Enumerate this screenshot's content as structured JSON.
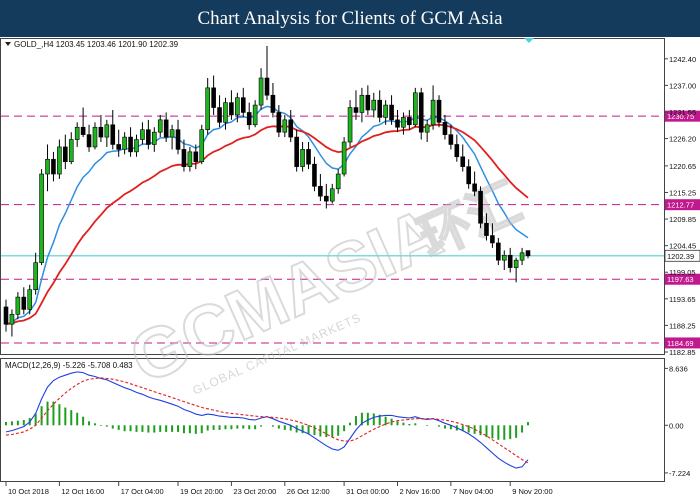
{
  "banner": {
    "title": "Chart Analysis for Clients of GCM Asia"
  },
  "watermark": {
    "main": "GCMASIA",
    "chinese": "环汇",
    "sub": "GLOBAL CAPITAL MARKETS"
  },
  "chart_data": [
    {
      "type": "candlestick",
      "header": "GOLD_,H4  1203.45 1203.46 1201.90 1202.39",
      "symbol": "GOLD_,H4",
      "ohlc_readout": "1203.45 1203.46 1201.90 1202.39",
      "ylim": [
        1182.85,
        1245.0
      ],
      "yticks": [
        "1242.40",
        "1237.00",
        "1231.55",
        "1226.20",
        "1220.65",
        "1215.25",
        "1209.85",
        "1204.45",
        "1199.05",
        "1193.65",
        "1188.25",
        "1182.85"
      ],
      "xticks": [
        "10 Oct 2018",
        "12 Oct 16:00",
        "17 Oct 04:00",
        "19 Oct 20:00",
        "23 Oct 20:00",
        "26 Oct 12:00",
        "31 Oct 00:00",
        "2 Nov 16:00",
        "7 Nov 04:00",
        "9 Nov 20:00"
      ],
      "current_price": {
        "value": 1202.39,
        "label": "1202.39",
        "color": "#4fd2d2"
      },
      "levels": [
        {
          "value": 1230.75,
          "label": "1230.75",
          "color": "#c2188f"
        },
        {
          "value": 1212.77,
          "label": "1212.77",
          "color": "#c2188f"
        },
        {
          "value": 1197.63,
          "label": "1197.63",
          "color": "#c2188f"
        },
        {
          "value": 1184.69,
          "label": "1184.69",
          "color": "#c2188f"
        }
      ],
      "moving_averages": [
        {
          "color": "#2f8fe0",
          "period": "fast"
        },
        {
          "color": "#e02020",
          "period": "slow"
        }
      ],
      "candles": [
        [
          1192.0,
          1193.5,
          1187.0,
          1188.5
        ],
        [
          1188.5,
          1191.5,
          1186.0,
          1190.5
        ],
        [
          1190.5,
          1195.0,
          1189.5,
          1194.0
        ],
        [
          1194.0,
          1196.0,
          1190.5,
          1191.5
        ],
        [
          1191.5,
          1196.5,
          1190.5,
          1195.5
        ],
        [
          1195.5,
          1203.0,
          1194.5,
          1201.0
        ],
        [
          1201.0,
          1220.0,
          1200.5,
          1219.0
        ],
        [
          1219.0,
          1225.0,
          1215.5,
          1222.0
        ],
        [
          1222.0,
          1223.5,
          1217.5,
          1219.0
        ],
        [
          1219.0,
          1226.0,
          1218.0,
          1224.5
        ],
        [
          1224.5,
          1227.0,
          1220.0,
          1221.5
        ],
        [
          1221.5,
          1227.5,
          1221.0,
          1226.0
        ],
        [
          1226.0,
          1229.5,
          1224.5,
          1228.5
        ],
        [
          1228.5,
          1232.5,
          1226.5,
          1227.0
        ],
        [
          1227.0,
          1229.0,
          1223.5,
          1224.5
        ],
        [
          1224.5,
          1229.5,
          1224.0,
          1228.5
        ],
        [
          1228.5,
          1231.0,
          1225.5,
          1226.5
        ],
        [
          1226.5,
          1230.0,
          1224.5,
          1229.0
        ],
        [
          1229.0,
          1232.0,
          1224.0,
          1225.0
        ],
        [
          1225.0,
          1228.0,
          1222.5,
          1224.0
        ],
        [
          1224.0,
          1227.5,
          1223.0,
          1226.5
        ],
        [
          1226.5,
          1228.5,
          1222.5,
          1223.5
        ],
        [
          1223.5,
          1227.0,
          1222.5,
          1226.0
        ],
        [
          1226.0,
          1229.5,
          1225.0,
          1228.0
        ],
        [
          1228.0,
          1230.0,
          1224.0,
          1225.0
        ],
        [
          1225.0,
          1228.5,
          1223.5,
          1227.5
        ],
        [
          1227.5,
          1231.0,
          1226.5,
          1230.0
        ],
        [
          1230.0,
          1231.5,
          1225.5,
          1226.5
        ],
        [
          1226.5,
          1229.0,
          1224.0,
          1228.0
        ],
        [
          1228.0,
          1230.0,
          1223.0,
          1224.0
        ],
        [
          1224.0,
          1226.0,
          1219.5,
          1220.5
        ],
        [
          1220.5,
          1224.5,
          1219.5,
          1223.5
        ],
        [
          1223.5,
          1225.0,
          1220.0,
          1221.5
        ],
        [
          1221.5,
          1229.0,
          1221.0,
          1228.0
        ],
        [
          1228.0,
          1238.5,
          1227.0,
          1236.5
        ],
        [
          1236.5,
          1239.0,
          1231.0,
          1232.5
        ],
        [
          1232.5,
          1235.0,
          1228.5,
          1229.5
        ],
        [
          1229.5,
          1234.5,
          1228.0,
          1233.5
        ],
        [
          1233.5,
          1236.0,
          1230.0,
          1231.0
        ],
        [
          1231.0,
          1235.5,
          1229.5,
          1234.5
        ],
        [
          1234.5,
          1236.5,
          1230.5,
          1231.5
        ],
        [
          1231.5,
          1233.5,
          1228.0,
          1229.0
        ],
        [
          1229.0,
          1234.0,
          1228.5,
          1233.0
        ],
        [
          1233.0,
          1240.5,
          1232.0,
          1238.5
        ],
        [
          1238.5,
          1245.0,
          1234.0,
          1235.0
        ],
        [
          1235.0,
          1237.5,
          1230.5,
          1231.5
        ],
        [
          1231.5,
          1233.0,
          1226.5,
          1227.5
        ],
        [
          1227.5,
          1231.0,
          1226.5,
          1230.0
        ],
        [
          1230.0,
          1232.0,
          1225.5,
          1226.5
        ],
        [
          1226.5,
          1228.0,
          1219.5,
          1220.5
        ],
        [
          1220.5,
          1225.5,
          1219.5,
          1224.0
        ],
        [
          1224.0,
          1225.5,
          1220.0,
          1221.0
        ],
        [
          1221.0,
          1222.5,
          1215.5,
          1216.5
        ],
        [
          1216.5,
          1219.0,
          1213.5,
          1214.5
        ],
        [
          1214.5,
          1217.0,
          1212.0,
          1213.5
        ],
        [
          1213.5,
          1217.0,
          1213.0,
          1216.0
        ],
        [
          1216.0,
          1220.0,
          1215.0,
          1219.0
        ],
        [
          1219.0,
          1226.5,
          1218.5,
          1225.5
        ],
        [
          1225.5,
          1234.0,
          1224.5,
          1232.5
        ],
        [
          1232.5,
          1236.0,
          1230.0,
          1231.5
        ],
        [
          1231.5,
          1236.5,
          1229.5,
          1235.0
        ],
        [
          1235.0,
          1237.0,
          1231.0,
          1232.0
        ],
        [
          1232.0,
          1235.5,
          1230.5,
          1234.0
        ],
        [
          1234.0,
          1236.0,
          1229.5,
          1230.5
        ],
        [
          1230.5,
          1234.0,
          1229.0,
          1233.0
        ],
        [
          1233.0,
          1235.0,
          1229.0,
          1230.0
        ],
        [
          1230.0,
          1232.0,
          1227.5,
          1228.5
        ],
        [
          1228.5,
          1231.5,
          1227.0,
          1230.5
        ],
        [
          1230.5,
          1232.0,
          1228.0,
          1229.0
        ],
        [
          1229.0,
          1236.5,
          1228.5,
          1235.5
        ],
        [
          1235.5,
          1236.5,
          1226.0,
          1227.5
        ],
        [
          1227.5,
          1230.0,
          1225.5,
          1229.0
        ],
        [
          1229.0,
          1237.0,
          1228.0,
          1234.0
        ],
        [
          1234.0,
          1235.0,
          1228.5,
          1229.5
        ],
        [
          1229.5,
          1231.0,
          1226.0,
          1227.0
        ],
        [
          1227.0,
          1229.0,
          1224.0,
          1225.0
        ],
        [
          1225.0,
          1227.0,
          1221.5,
          1222.5
        ],
        [
          1222.5,
          1225.0,
          1219.5,
          1220.5
        ],
        [
          1220.5,
          1222.0,
          1216.0,
          1217.0
        ],
        [
          1217.0,
          1219.5,
          1214.5,
          1215.5
        ],
        [
          1215.5,
          1216.5,
          1208.0,
          1209.0
        ],
        [
          1209.0,
          1211.0,
          1205.5,
          1206.5
        ],
        [
          1206.5,
          1209.0,
          1204.0,
          1205.0
        ],
        [
          1205.0,
          1206.0,
          1200.5,
          1201.5
        ],
        [
          1201.5,
          1203.5,
          1199.5,
          1202.5
        ],
        [
          1202.5,
          1204.0,
          1199.0,
          1200.0
        ],
        [
          1200.0,
          1202.0,
          1197.0,
          1201.5
        ],
        [
          1201.5,
          1204.0,
          1200.5,
          1203.0
        ],
        [
          1203.45,
          1203.46,
          1201.9,
          1202.39
        ]
      ]
    },
    {
      "type": "macd",
      "header": "MACD(12,26,9) -5.226 -5.708 0.483",
      "name": "MACD(12,26,9)",
      "readout": "-5.226 -5.708 0.483",
      "ylim": [
        -8.0,
        9.0
      ],
      "yticks": [
        "8.636",
        "0.00",
        "-7.224"
      ],
      "line_color": "#2040e0",
      "signal_color": "#e02020",
      "hist_color": "#1e9e1e",
      "macd": [
        -1.0,
        -0.8,
        -0.5,
        -0.2,
        0.5,
        1.8,
        4.0,
        5.8,
        6.8,
        7.3,
        7.6,
        7.9,
        8.1,
        8.0,
        7.6,
        7.4,
        7.1,
        6.9,
        6.5,
        6.1,
        5.7,
        5.4,
        5.0,
        4.7,
        4.3,
        4.0,
        3.8,
        3.5,
        3.2,
        2.9,
        2.4,
        2.1,
        1.7,
        1.5,
        1.7,
        1.6,
        1.4,
        1.3,
        1.2,
        1.2,
        1.1,
        0.9,
        0.8,
        1.1,
        1.3,
        1.0,
        0.6,
        0.3,
        0.0,
        -0.5,
        -0.9,
        -1.3,
        -1.9,
        -2.5,
        -3.1,
        -3.6,
        -3.8,
        -3.3,
        -2.0,
        -0.7,
        0.3,
        0.8,
        1.2,
        1.4,
        1.5,
        1.5,
        1.3,
        1.2,
        1.1,
        1.3,
        1.0,
        0.9,
        1.0,
        0.7,
        0.3,
        0.0,
        -0.4,
        -0.8,
        -1.3,
        -1.9,
        -2.6,
        -3.4,
        -4.2,
        -5.0,
        -5.6,
        -6.1,
        -6.5,
        -6.3,
        -5.226
      ],
      "signal": [
        -1.5,
        -1.4,
        -1.2,
        -1.0,
        -0.6,
        0.0,
        1.1,
        2.2,
        3.2,
        4.1,
        4.9,
        5.6,
        6.2,
        6.7,
        7.0,
        7.1,
        7.2,
        7.1,
        7.0,
        6.8,
        6.6,
        6.3,
        6.0,
        5.7,
        5.4,
        5.1,
        4.8,
        4.5,
        4.2,
        3.9,
        3.6,
        3.3,
        3.0,
        2.7,
        2.5,
        2.3,
        2.1,
        1.9,
        1.8,
        1.7,
        1.6,
        1.5,
        1.4,
        1.3,
        1.3,
        1.2,
        1.1,
        1.0,
        0.8,
        0.6,
        0.3,
        0.0,
        -0.4,
        -0.8,
        -1.3,
        -1.8,
        -2.2,
        -2.4,
        -2.4,
        -2.1,
        -1.6,
        -1.1,
        -0.6,
        -0.2,
        0.2,
        0.5,
        0.7,
        0.8,
        0.9,
        1.0,
        1.0,
        1.0,
        1.0,
        0.9,
        0.8,
        0.6,
        0.4,
        0.1,
        -0.2,
        -0.6,
        -1.1,
        -1.6,
        -2.2,
        -2.8,
        -3.4,
        -4.0,
        -4.6,
        -5.2,
        -5.708
      ]
    }
  ]
}
